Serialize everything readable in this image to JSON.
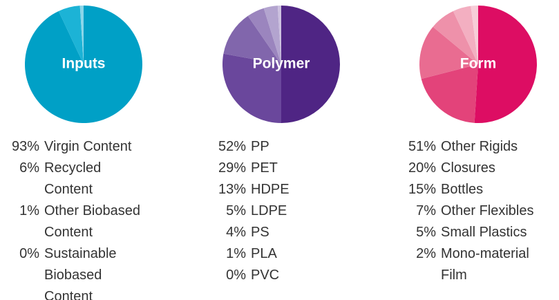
{
  "chart_data": [
    {
      "type": "pie",
      "title": "Inputs",
      "categories": [
        "Virgin Content",
        "Recycled Content",
        "Other Biobased Content",
        "Sustainable Biobased Content"
      ],
      "values": [
        93,
        6,
        1,
        0
      ],
      "value_labels": [
        "93%",
        "6%",
        "1%",
        "0%"
      ],
      "colors": [
        "#00a0c6",
        "#1cb3d6",
        "#8bd6e9",
        "#cdeef6"
      ]
    },
    {
      "type": "pie",
      "title": "Polymer",
      "categories": [
        "PP",
        "PET",
        "HDPE",
        "LDPE",
        "PS",
        "PLA",
        "PVC"
      ],
      "values": [
        52,
        29,
        13,
        5,
        4,
        1,
        0
      ],
      "value_labels": [
        "52%",
        "29%",
        "13%",
        "5%",
        "4%",
        "1%",
        "0%"
      ],
      "colors": [
        "#4f2584",
        "#6a479c",
        "#8166ac",
        "#9b85be",
        "#b3a4cf",
        "#cdc2e0",
        "#e3dcee"
      ]
    },
    {
      "type": "pie",
      "title": "Form",
      "categories": [
        "Other Rigids",
        "Closures",
        "Bottles",
        "Other Flexibles",
        "Small Plastics",
        "Mono-material Film"
      ],
      "values": [
        51,
        20,
        15,
        7,
        5,
        2
      ],
      "value_labels": [
        "51%",
        "20%",
        "15%",
        "7%",
        "5%",
        "2%"
      ],
      "colors": [
        "#dd0d63",
        "#e3437a",
        "#e96c91",
        "#ee91aa",
        "#f3afc1",
        "#f7cdd8"
      ]
    }
  ]
}
